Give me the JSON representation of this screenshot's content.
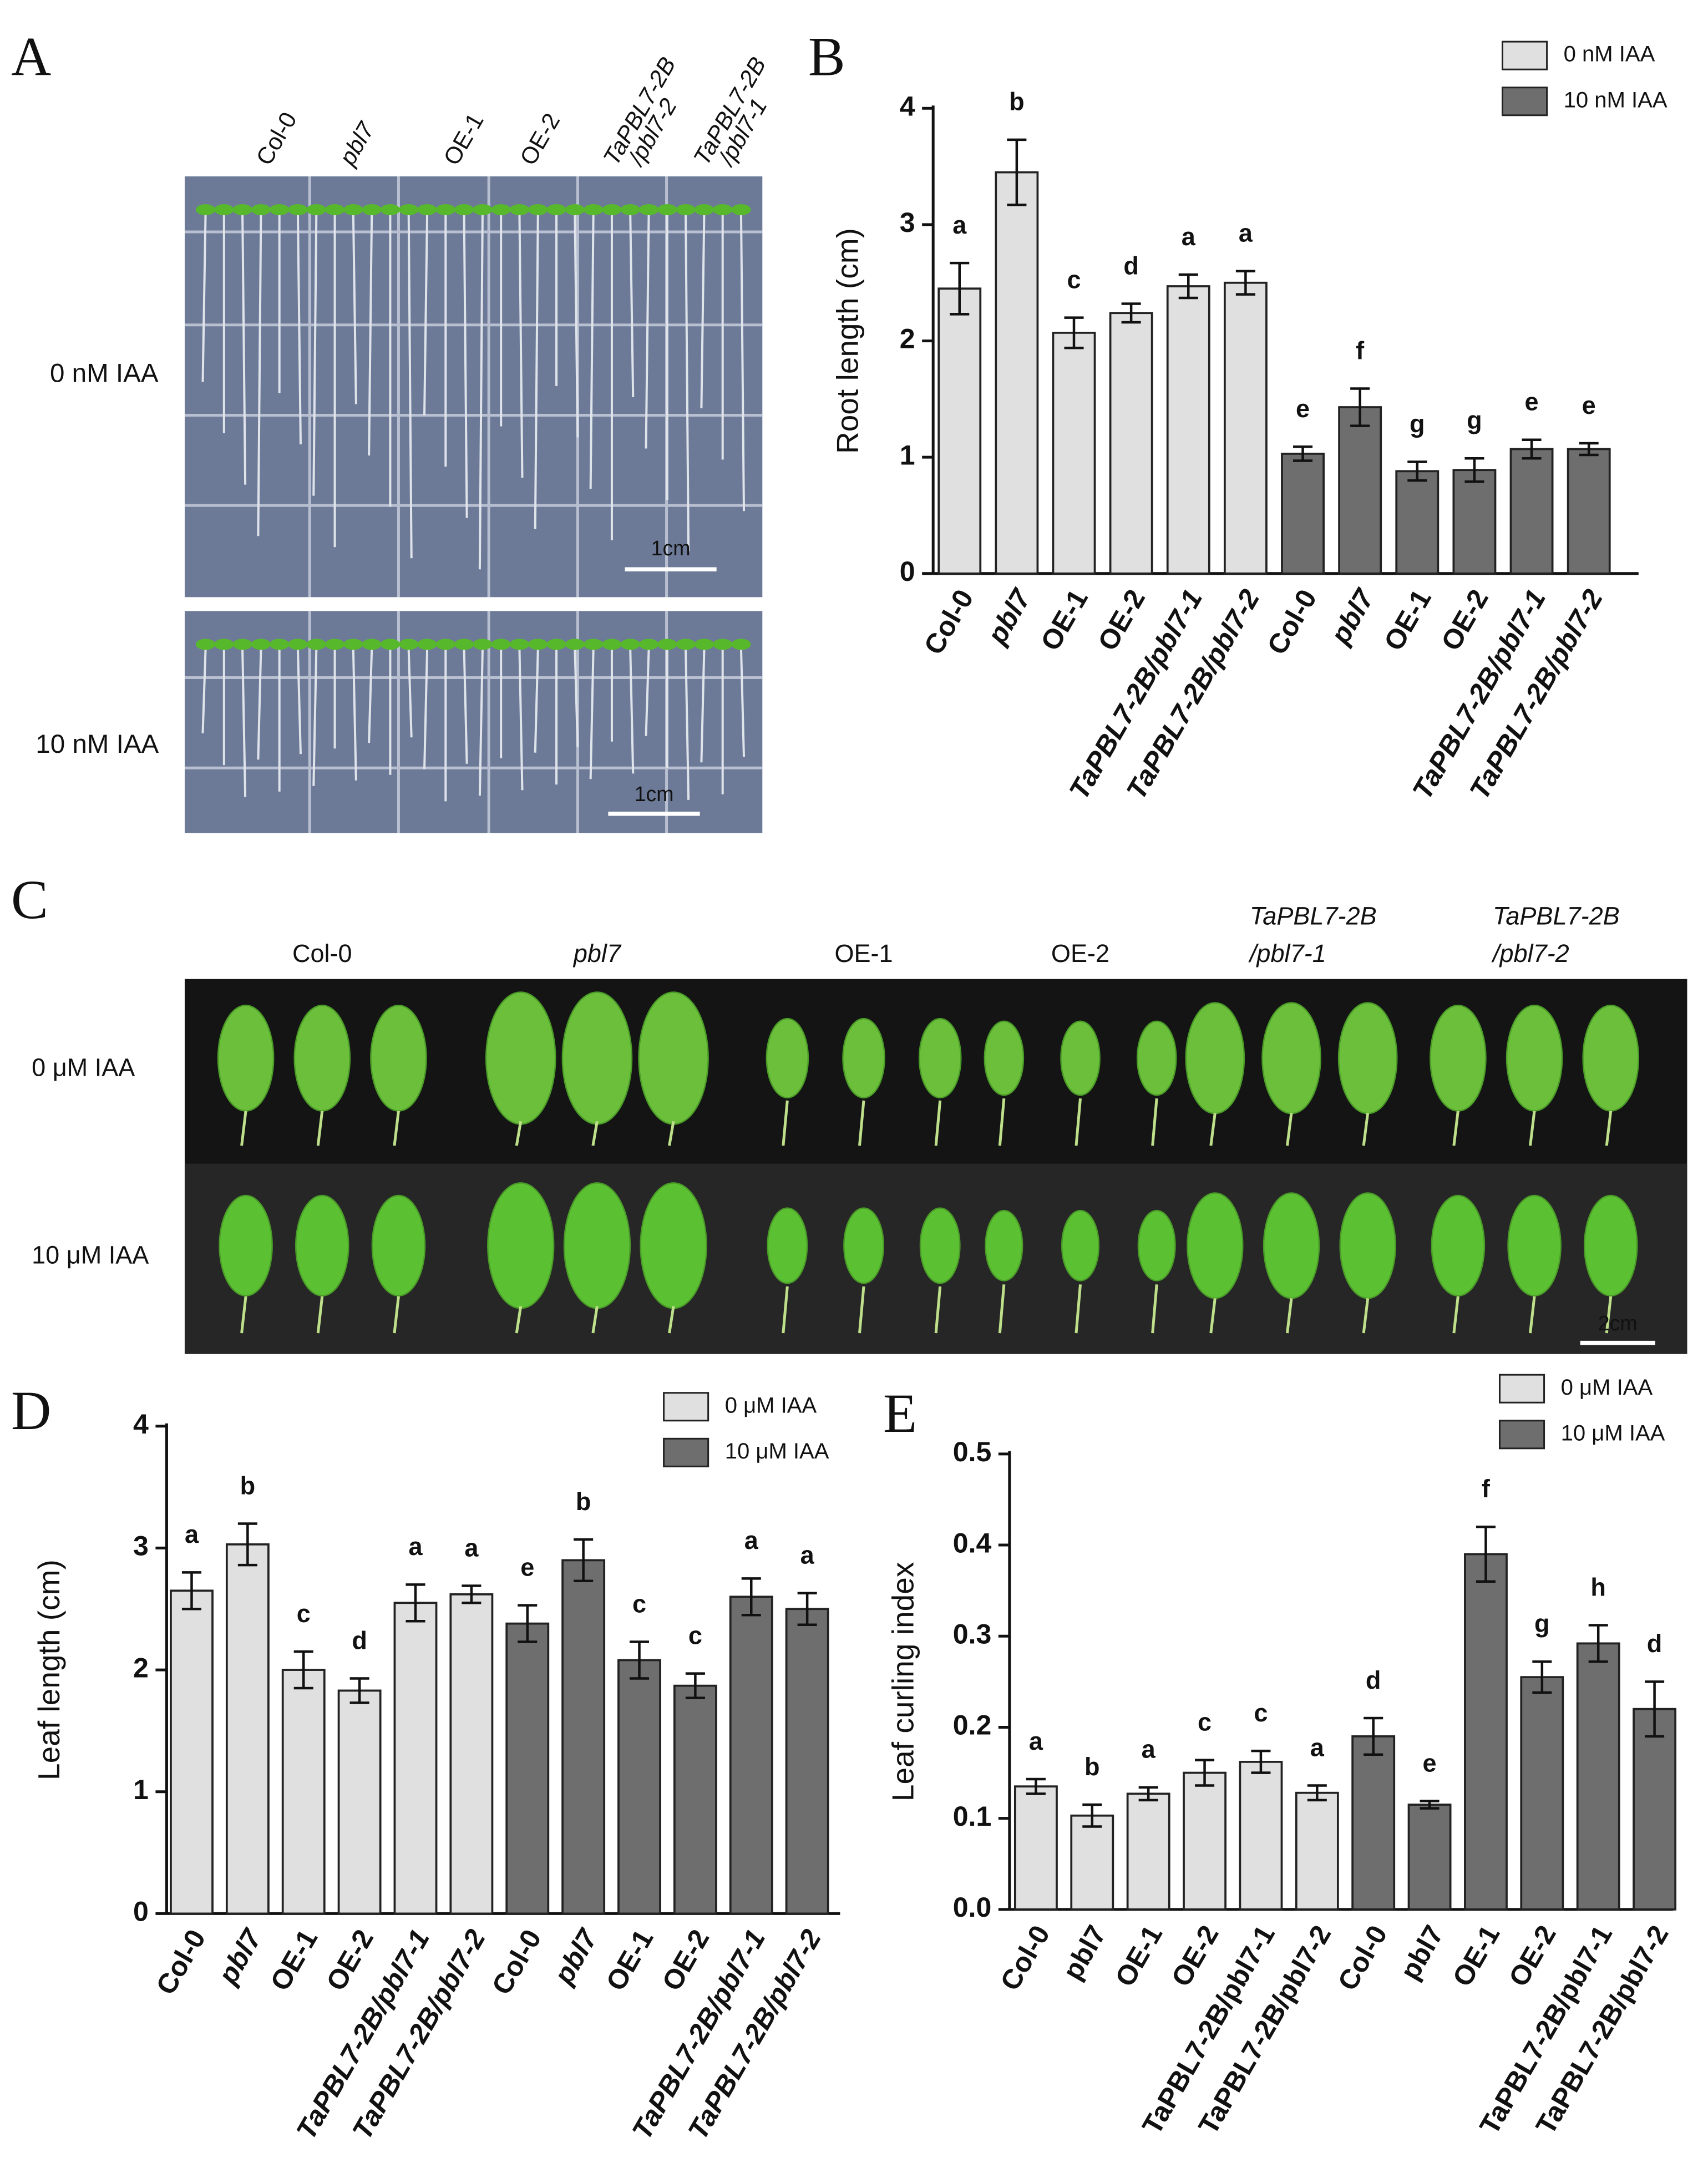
{
  "panel_labels": [
    "A",
    "B",
    "C",
    "D",
    "E"
  ],
  "photo_a": {
    "columns": [
      [
        "Col-0"
      ],
      [
        "pbl7"
      ],
      [
        "OE-1"
      ],
      [
        "OE-2"
      ],
      [
        "TaPBL7-2B",
        "/pbl7-2"
      ],
      [
        "TaPBL7-2B",
        "/pbl7-1"
      ]
    ],
    "rows": [
      "0 nM IAA",
      "10 nM IAA"
    ],
    "scale_bar": "1cm"
  },
  "photo_c": {
    "columns": [
      [
        "Col-0"
      ],
      [
        "pbl7"
      ],
      [
        "OE-1"
      ],
      [
        "OE-2"
      ],
      [
        "TaPBL7-2B",
        "/pbl7-1"
      ],
      [
        "TaPBL7-2B",
        "/pbl7-2"
      ]
    ],
    "rows": [
      "0 μM IAA",
      "10 μM IAA"
    ],
    "scale_bar": "2cm"
  },
  "chart_data": [
    {
      "type": "bar",
      "y_label": "Root length (cm)",
      "ylim": [
        0,
        4
      ],
      "yticks": [
        0,
        1,
        2,
        3,
        4
      ],
      "categories": [
        "Col-0",
        "pbl7",
        "OE-1",
        "OE-2",
        "TaPBL7-2B/pbl7-1",
        "TaPBL7-2B/pbl7-2",
        "Col-0",
        "pbl7",
        "OE-1",
        "OE-2",
        "TaPBL7-2B/pbl7-1",
        "TaPBL7-2B/pbl7-2"
      ],
      "series": [
        {
          "name": "0 nM IAA",
          "color": "#e0e0e0",
          "values": [
            2.45,
            3.45,
            2.07,
            2.24,
            2.47,
            2.5,
            null,
            null,
            null,
            null,
            null,
            null
          ],
          "errors": [
            0.22,
            0.28,
            0.13,
            0.08,
            0.1,
            0.1,
            null,
            null,
            null,
            null,
            null,
            null
          ],
          "labels": [
            "a",
            "b",
            "c",
            "d",
            "a",
            "a",
            null,
            null,
            null,
            null,
            null,
            null
          ]
        },
        {
          "name": "10 nM IAA",
          "color": "#6e6e6e",
          "values": [
            null,
            null,
            null,
            null,
            null,
            null,
            1.03,
            1.43,
            0.88,
            0.89,
            1.07,
            1.07
          ],
          "errors": [
            null,
            null,
            null,
            null,
            null,
            null,
            0.06,
            0.16,
            0.08,
            0.1,
            0.08,
            0.05
          ],
          "labels": [
            null,
            null,
            null,
            null,
            null,
            null,
            "e",
            "f",
            "g",
            "g",
            "e",
            "e"
          ]
        }
      ]
    },
    {
      "type": "bar",
      "y_label": "Leaf length (cm)",
      "ylim": [
        0,
        4
      ],
      "yticks": [
        0,
        1,
        2,
        3,
        4
      ],
      "categories": [
        "Col-0",
        "pbl7",
        "OE-1",
        "OE-2",
        "TaPBL7-2B/pbl7-1",
        "TaPBL7-2B/pbl7-2",
        "Col-0",
        "pbl7",
        "OE-1",
        "OE-2",
        "TaPBL7-2B/pbl7-1",
        "TaPBL7-2B/pbl7-2"
      ],
      "series": [
        {
          "name": "0 μM IAA",
          "color": "#e0e0e0",
          "values": [
            2.65,
            3.03,
            2.0,
            1.83,
            2.55,
            2.62,
            null,
            null,
            null,
            null,
            null,
            null
          ],
          "errors": [
            0.15,
            0.17,
            0.15,
            0.1,
            0.15,
            0.07,
            null,
            null,
            null,
            null,
            null,
            null
          ],
          "labels": [
            "a",
            "b",
            "c",
            "d",
            "a",
            "a",
            null,
            null,
            null,
            null,
            null,
            null
          ]
        },
        {
          "name": "10 μM IAA",
          "color": "#6e6e6e",
          "values": [
            null,
            null,
            null,
            null,
            null,
            null,
            2.38,
            2.9,
            2.08,
            1.87,
            2.6,
            2.5
          ],
          "errors": [
            null,
            null,
            null,
            null,
            null,
            null,
            0.15,
            0.17,
            0.15,
            0.1,
            0.15,
            0.13
          ],
          "labels": [
            null,
            null,
            null,
            null,
            null,
            null,
            "e",
            "b",
            "c",
            "c",
            "a",
            "a"
          ]
        }
      ]
    },
    {
      "type": "bar",
      "y_label": "Leaf curling index",
      "ylim": [
        0,
        0.5
      ],
      "yticks": [
        {
          "value": 0,
          "label": "0.0"
        },
        0.1,
        0.2,
        0.3,
        0.4,
        0.5
      ],
      "categories": [
        "Col-0",
        "pbl7",
        "OE-1",
        "OE-2",
        "TaPBL7-2B/pbl7-1",
        "TaPBL7-2B/pbl7-2",
        "Col-0",
        "pbl7",
        "OE-1",
        "OE-2",
        "TaPBL7-2B/pbl7-1",
        "TaPBL7-2B/pbl7-2"
      ],
      "series": [
        {
          "name": "0 μM IAA",
          "color": "#e0e0e0",
          "values": [
            0.135,
            0.103,
            0.127,
            0.15,
            0.162,
            0.128,
            null,
            null,
            null,
            null,
            null,
            null
          ],
          "errors": [
            0.008,
            0.012,
            0.007,
            0.014,
            0.012,
            0.008,
            null,
            null,
            null,
            null,
            null,
            null
          ],
          "labels": [
            "a",
            "b",
            "a",
            "c",
            "c",
            "a",
            null,
            null,
            null,
            null,
            null,
            null
          ]
        },
        {
          "name": "10 μM IAA",
          "color": "#6e6e6e",
          "values": [
            null,
            null,
            null,
            null,
            null,
            null,
            0.19,
            0.115,
            0.39,
            0.255,
            0.292,
            0.22
          ],
          "errors": [
            null,
            null,
            null,
            null,
            null,
            null,
            0.02,
            0.004,
            0.03,
            0.017,
            0.02,
            0.03
          ],
          "labels": [
            null,
            null,
            null,
            null,
            null,
            null,
            "d",
            "e",
            "f",
            "g",
            "h",
            "d"
          ]
        }
      ]
    }
  ]
}
